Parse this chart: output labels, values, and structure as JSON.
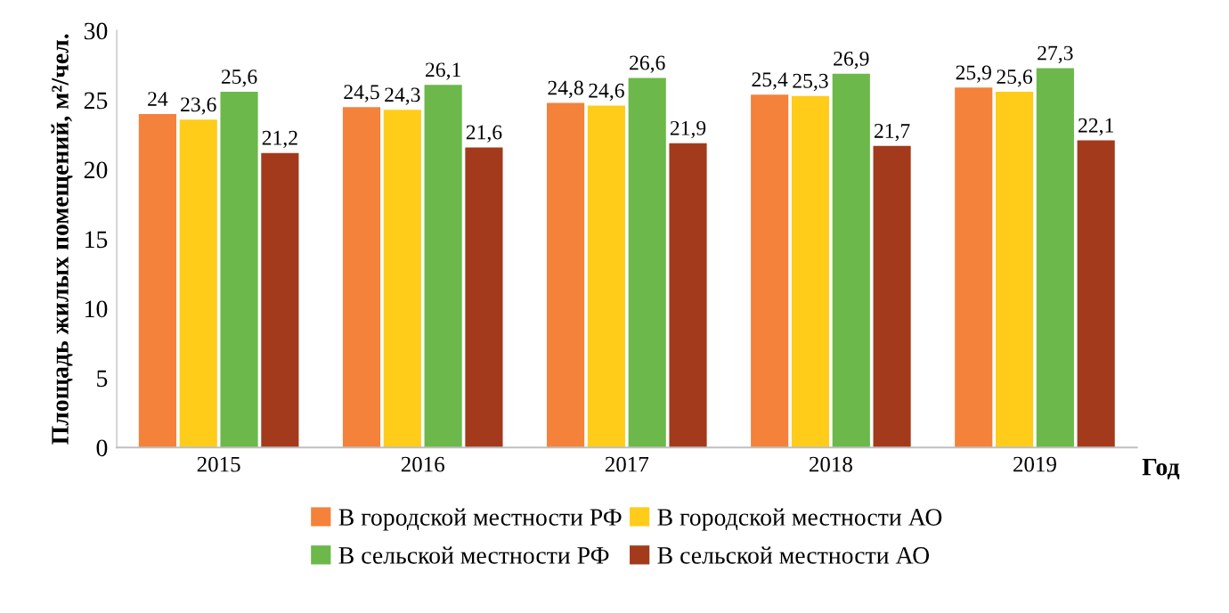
{
  "chart_data": {
    "type": "bar",
    "xlabel": "Год",
    "ylabel": "Площадь жилых помещений, м²/чел.",
    "categories": [
      "2015",
      "2016",
      "2017",
      "2018",
      "2019"
    ],
    "series": [
      {
        "name": "В городской местности РФ",
        "color": "#f4823a",
        "values": [
          24,
          24.5,
          24.8,
          25.4,
          25.9
        ],
        "value_labels": [
          "24",
          "24,5",
          "24,8",
          "25,4",
          "25,9"
        ]
      },
      {
        "name": "В городской местности АО",
        "color": "#ffcc1a",
        "values": [
          23.6,
          24.3,
          24.6,
          25.3,
          25.6
        ],
        "value_labels": [
          "23,6",
          "24,3",
          "24,6",
          "25,3",
          "25,6"
        ]
      },
      {
        "name": "В сельской местности РФ",
        "color": "#6cb84a",
        "values": [
          25.6,
          26.1,
          26.6,
          26.9,
          27.3
        ],
        "value_labels": [
          "25,6",
          "26,1",
          "26,6",
          "26,9",
          "27,3"
        ]
      },
      {
        "name": "В сельской местности АО",
        "color": "#a33a1c",
        "values": [
          21.2,
          21.6,
          21.9,
          21.7,
          22.1
        ],
        "value_labels": [
          "21,2",
          "21,6",
          "21,9",
          "21,7",
          "22,1"
        ]
      }
    ],
    "ylim": [
      0,
      30
    ],
    "yticks": [
      0,
      5,
      10,
      15,
      20,
      25,
      30
    ],
    "grid": false,
    "legend": "bottom"
  }
}
